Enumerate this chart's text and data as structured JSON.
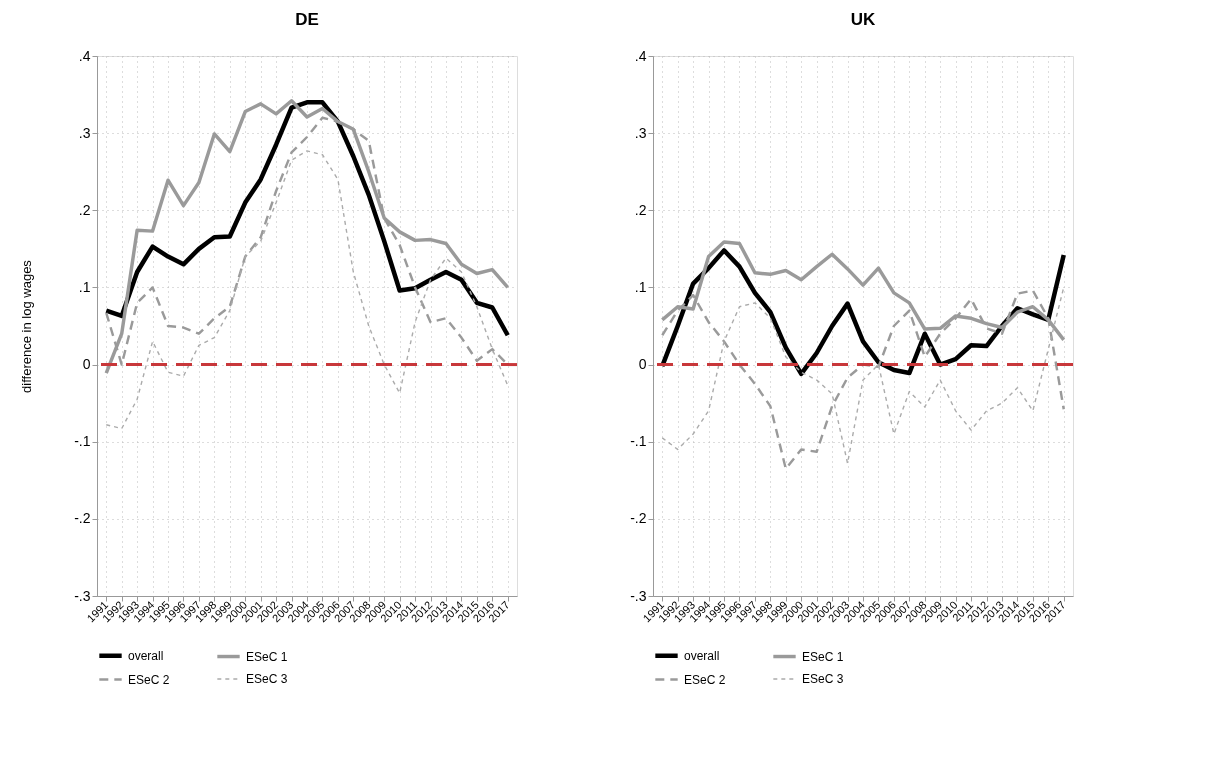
{
  "chart_data": [
    {
      "type": "line",
      "title": "DE",
      "ylabel": "difference in log wages",
      "categories": [
        "1991",
        "1992",
        "1993",
        "1994",
        "1995",
        "1996",
        "1997",
        "1998",
        "1999",
        "2000",
        "2001",
        "2002",
        "2003",
        "2004",
        "2005",
        "2006",
        "2007",
        "2008",
        "2009",
        "2010",
        "2011",
        "2012",
        "2013",
        "2014",
        "2015",
        "2016",
        "2017"
      ],
      "ylim": [
        -0.3,
        0.4
      ],
      "yticks": [
        {
          "value": -0.3,
          "label": "-.3"
        },
        {
          "value": -0.2,
          "label": "-.2"
        },
        {
          "value": -0.1,
          "label": "-.1"
        },
        0,
        {
          "value": 0.1,
          "label": ".1"
        },
        {
          "value": 0.2,
          "label": ".2"
        },
        {
          "value": 0.3,
          "label": ".3"
        },
        {
          "value": 0.4,
          "label": ".4"
        }
      ],
      "grid": true,
      "legend": "bottom",
      "marker": "none",
      "ref_lines": [
        {
          "axis": "y",
          "value": 0,
          "color": "#c8373a",
          "line_style": "dashed"
        }
      ],
      "series": [
        {
          "name": "overall",
          "color": "#000000",
          "line_style": "solid",
          "values": [
            0.07,
            0.063,
            0.12,
            0.153,
            0.14,
            0.13,
            0.15,
            0.165,
            0.166,
            0.21,
            0.24,
            0.285,
            0.333,
            0.34,
            0.34,
            0.315,
            0.27,
            0.22,
            0.16,
            0.096,
            0.099,
            0.11,
            0.12,
            0.11,
            0.08,
            0.074,
            0.038
          ]
        },
        {
          "name": "ESeC 1",
          "color": "#9a9a9a",
          "line_style": "solid",
          "values": [
            -0.011,
            0.04,
            0.174,
            0.173,
            0.239,
            0.206,
            0.236,
            0.299,
            0.276,
            0.328,
            0.338,
            0.325,
            0.342,
            0.321,
            0.332,
            0.315,
            0.305,
            0.25,
            0.19,
            0.172,
            0.161,
            0.162,
            0.157,
            0.13,
            0.118,
            0.123,
            0.1
          ]
        },
        {
          "name": "ESeC 2",
          "color": "#9a9a9a",
          "line_style": "dashed",
          "values": [
            0.067,
            0.0,
            0.08,
            0.1,
            0.05,
            0.048,
            0.04,
            0.06,
            0.075,
            0.14,
            0.165,
            0.225,
            0.275,
            0.295,
            0.32,
            0.315,
            0.305,
            0.29,
            0.19,
            0.155,
            0.1,
            0.055,
            0.06,
            0.035,
            0.005,
            0.02,
            0.0
          ]
        },
        {
          "name": "ESeC 3",
          "color": "#ababab",
          "line_style": "dotted",
          "values": [
            -0.078,
            -0.083,
            -0.045,
            0.03,
            -0.01,
            -0.015,
            0.025,
            0.035,
            0.07,
            0.14,
            0.16,
            0.21,
            0.265,
            0.277,
            0.272,
            0.24,
            0.12,
            0.05,
            0.0,
            -0.037,
            0.055,
            0.11,
            0.138,
            0.12,
            0.075,
            0.02,
            -0.027
          ]
        }
      ]
    },
    {
      "type": "line",
      "title": "UK",
      "categories": [
        "1991",
        "1992",
        "1993",
        "1994",
        "1995",
        "1996",
        "1997",
        "1998",
        "1999",
        "2000",
        "2001",
        "2002",
        "2003",
        "2004",
        "2005",
        "2006",
        "2007",
        "2008",
        "2009",
        "2010",
        "2011",
        "2012",
        "2013",
        "2014",
        "2015",
        "2016",
        "2017"
      ],
      "ylim": [
        -0.3,
        0.4
      ],
      "yticks": [
        {
          "value": -0.3,
          "label": "-.3"
        },
        {
          "value": -0.2,
          "label": "-.2"
        },
        {
          "value": -0.1,
          "label": "-.1"
        },
        0,
        {
          "value": 0.1,
          "label": ".1"
        },
        {
          "value": 0.2,
          "label": ".2"
        },
        {
          "value": 0.3,
          "label": ".3"
        },
        {
          "value": 0.4,
          "label": ".4"
        }
      ],
      "grid": true,
      "legend": "bottom",
      "marker": "none",
      "ref_lines": [
        {
          "axis": "y",
          "value": 0,
          "color": "#c8373a",
          "line_style": "dashed"
        }
      ],
      "series": [
        {
          "name": "overall",
          "color": "#000000",
          "line_style": "solid",
          "values": [
            -0.002,
            0.05,
            0.105,
            0.125,
            0.148,
            0.127,
            0.093,
            0.068,
            0.022,
            -0.012,
            0.015,
            0.05,
            0.079,
            0.03,
            0.003,
            -0.007,
            -0.011,
            0.04,
            0.0,
            0.007,
            0.025,
            0.024,
            0.05,
            0.073,
            0.065,
            0.058,
            0.142
          ]
        },
        {
          "name": "ESeC 1",
          "color": "#9a9a9a",
          "line_style": "solid",
          "values": [
            0.058,
            0.075,
            0.072,
            0.14,
            0.159,
            0.157,
            0.119,
            0.117,
            0.122,
            0.11,
            0.127,
            0.143,
            0.124,
            0.103,
            0.125,
            0.093,
            0.08,
            0.046,
            0.047,
            0.063,
            0.06,
            0.053,
            0.048,
            0.068,
            0.075,
            0.058,
            0.032
          ]
        },
        {
          "name": "ESeC 2",
          "color": "#9a9a9a",
          "line_style": "dashed",
          "values": [
            0.038,
            0.07,
            0.09,
            0.055,
            0.03,
            0.0,
            -0.025,
            -0.054,
            -0.135,
            -0.11,
            -0.113,
            -0.054,
            -0.017,
            0.0,
            -0.003,
            0.05,
            0.07,
            0.01,
            0.04,
            0.06,
            0.085,
            0.047,
            0.04,
            0.092,
            0.096,
            0.06,
            -0.058
          ]
        },
        {
          "name": "ESeC 3",
          "color": "#ababab",
          "line_style": "dotted",
          "values": [
            -0.095,
            -0.11,
            -0.09,
            -0.06,
            0.03,
            0.075,
            0.08,
            0.06,
            0.01,
            -0.01,
            -0.02,
            -0.038,
            -0.128,
            -0.02,
            0.0,
            -0.09,
            -0.035,
            -0.055,
            -0.02,
            -0.06,
            -0.085,
            -0.06,
            -0.05,
            -0.03,
            -0.06,
            0.02,
            0.1
          ]
        }
      ]
    }
  ]
}
